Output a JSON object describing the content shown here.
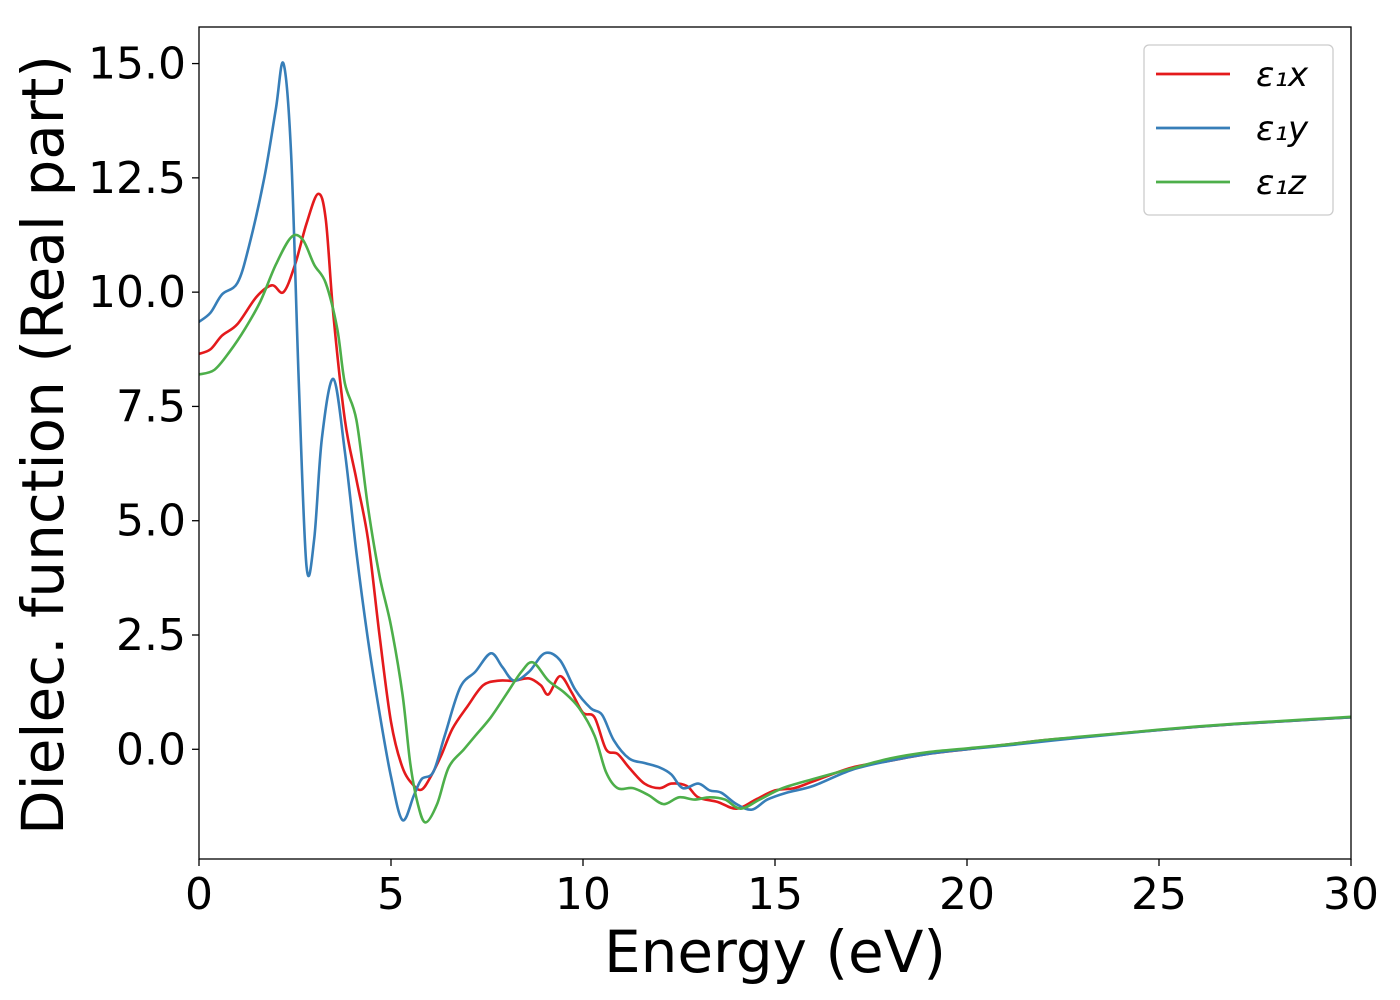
{
  "chart_data": {
    "type": "line",
    "title": "",
    "xlabel": "Energy (eV)",
    "ylabel": "Dielec. function (Real part)",
    "xlim": [
      0,
      30
    ],
    "ylim": [
      -2.4,
      15.8
    ],
    "xticks": [
      0,
      5,
      10,
      15,
      20,
      25,
      30
    ],
    "xtick_labels": [
      "0",
      "5",
      "10",
      "15",
      "20",
      "25",
      "30"
    ],
    "yticks": [
      0.0,
      2.5,
      5.0,
      7.5,
      10.0,
      12.5,
      15.0
    ],
    "ytick_labels": [
      "0.0",
      "2.5",
      "5.0",
      "7.5",
      "10.0",
      "12.5",
      "15.0"
    ],
    "grid": false,
    "legend_position": "top-right",
    "series": [
      {
        "name": "ε₁x",
        "color": "#e41a1c",
        "points": [
          [
            0,
            8.65
          ],
          [
            0.3,
            8.75
          ],
          [
            0.6,
            9.05
          ],
          [
            1.0,
            9.3
          ],
          [
            1.5,
            9.9
          ],
          [
            1.9,
            10.15
          ],
          [
            2.2,
            10.0
          ],
          [
            2.5,
            10.6
          ],
          [
            2.8,
            11.5
          ],
          [
            3.1,
            12.15
          ],
          [
            3.3,
            11.6
          ],
          [
            3.5,
            9.5
          ],
          [
            3.8,
            7.2
          ],
          [
            4.1,
            5.9
          ],
          [
            4.4,
            4.6
          ],
          [
            4.7,
            2.5
          ],
          [
            5.0,
            0.6
          ],
          [
            5.3,
            -0.4
          ],
          [
            5.6,
            -0.8
          ],
          [
            5.8,
            -0.88
          ],
          [
            6.0,
            -0.65
          ],
          [
            6.3,
            -0.15
          ],
          [
            6.6,
            0.45
          ],
          [
            7.0,
            0.95
          ],
          [
            7.4,
            1.4
          ],
          [
            7.8,
            1.5
          ],
          [
            8.2,
            1.5
          ],
          [
            8.6,
            1.55
          ],
          [
            8.9,
            1.4
          ],
          [
            9.1,
            1.2
          ],
          [
            9.4,
            1.6
          ],
          [
            9.7,
            1.25
          ],
          [
            10.0,
            0.8
          ],
          [
            10.3,
            0.7
          ],
          [
            10.6,
            0.0
          ],
          [
            10.9,
            -0.1
          ],
          [
            11.2,
            -0.4
          ],
          [
            11.6,
            -0.75
          ],
          [
            12.0,
            -0.85
          ],
          [
            12.3,
            -0.75
          ],
          [
            12.7,
            -0.8
          ],
          [
            13.0,
            -1.05
          ],
          [
            13.5,
            -1.15
          ],
          [
            14.0,
            -1.3
          ],
          [
            14.5,
            -1.1
          ],
          [
            15.0,
            -0.9
          ],
          [
            15.5,
            -0.85
          ],
          [
            16.0,
            -0.7
          ],
          [
            17,
            -0.4
          ],
          [
            18,
            -0.25
          ],
          [
            19,
            -0.1
          ],
          [
            20,
            0.0
          ],
          [
            21,
            0.1
          ],
          [
            22,
            0.2
          ],
          [
            23,
            0.27
          ],
          [
            24,
            0.35
          ],
          [
            25,
            0.42
          ],
          [
            26,
            0.49
          ],
          [
            27,
            0.55
          ],
          [
            28,
            0.6
          ],
          [
            29,
            0.65
          ],
          [
            30,
            0.7
          ]
        ]
      },
      {
        "name": "ε₁y",
        "color": "#377eb8",
        "points": [
          [
            0,
            9.35
          ],
          [
            0.3,
            9.55
          ],
          [
            0.6,
            9.95
          ],
          [
            1.0,
            10.2
          ],
          [
            1.3,
            11.0
          ],
          [
            1.7,
            12.5
          ],
          [
            2.0,
            14.0
          ],
          [
            2.2,
            15.0
          ],
          [
            2.4,
            13.0
          ],
          [
            2.6,
            8.0
          ],
          [
            2.8,
            4.0
          ],
          [
            3.0,
            4.6
          ],
          [
            3.2,
            6.8
          ],
          [
            3.5,
            8.1
          ],
          [
            3.8,
            6.5
          ],
          [
            4.1,
            4.3
          ],
          [
            4.4,
            2.4
          ],
          [
            4.7,
            0.8
          ],
          [
            5.0,
            -0.6
          ],
          [
            5.3,
            -1.55
          ],
          [
            5.6,
            -1.0
          ],
          [
            5.8,
            -0.65
          ],
          [
            6.1,
            -0.5
          ],
          [
            6.4,
            0.3
          ],
          [
            6.8,
            1.35
          ],
          [
            7.2,
            1.7
          ],
          [
            7.6,
            2.1
          ],
          [
            7.9,
            1.8
          ],
          [
            8.2,
            1.5
          ],
          [
            8.6,
            1.7
          ],
          [
            9.0,
            2.1
          ],
          [
            9.4,
            1.95
          ],
          [
            9.8,
            1.3
          ],
          [
            10.2,
            0.9
          ],
          [
            10.5,
            0.75
          ],
          [
            10.8,
            0.2
          ],
          [
            11.2,
            -0.2
          ],
          [
            11.6,
            -0.3
          ],
          [
            12.0,
            -0.4
          ],
          [
            12.3,
            -0.55
          ],
          [
            12.6,
            -0.85
          ],
          [
            13.0,
            -0.75
          ],
          [
            13.3,
            -0.9
          ],
          [
            13.6,
            -0.95
          ],
          [
            14.0,
            -1.2
          ],
          [
            14.4,
            -1.32
          ],
          [
            14.8,
            -1.1
          ],
          [
            15.3,
            -0.95
          ],
          [
            16,
            -0.8
          ],
          [
            17,
            -0.45
          ],
          [
            18,
            -0.25
          ],
          [
            19,
            -0.1
          ],
          [
            20,
            0.0
          ],
          [
            21,
            0.08
          ],
          [
            22,
            0.17
          ],
          [
            23,
            0.26
          ],
          [
            24,
            0.34
          ],
          [
            25,
            0.42
          ],
          [
            26,
            0.49
          ],
          [
            27,
            0.55
          ],
          [
            28,
            0.6
          ],
          [
            29,
            0.65
          ],
          [
            30,
            0.7
          ]
        ]
      },
      {
        "name": "ε₁z",
        "color": "#4daf4a",
        "points": [
          [
            0,
            8.2
          ],
          [
            0.4,
            8.3
          ],
          [
            0.8,
            8.7
          ],
          [
            1.2,
            9.2
          ],
          [
            1.6,
            9.8
          ],
          [
            2.0,
            10.6
          ],
          [
            2.4,
            11.2
          ],
          [
            2.7,
            11.15
          ],
          [
            3.0,
            10.6
          ],
          [
            3.3,
            10.2
          ],
          [
            3.6,
            9.2
          ],
          [
            3.8,
            8.0
          ],
          [
            4.1,
            7.2
          ],
          [
            4.4,
            5.3
          ],
          [
            4.7,
            3.8
          ],
          [
            5.0,
            2.7
          ],
          [
            5.3,
            1.2
          ],
          [
            5.5,
            -0.3
          ],
          [
            5.7,
            -1.2
          ],
          [
            5.9,
            -1.6
          ],
          [
            6.2,
            -1.2
          ],
          [
            6.5,
            -0.4
          ],
          [
            6.9,
            0.0
          ],
          [
            7.2,
            0.3
          ],
          [
            7.6,
            0.7
          ],
          [
            8.0,
            1.2
          ],
          [
            8.4,
            1.7
          ],
          [
            8.7,
            1.9
          ],
          [
            9.1,
            1.5
          ],
          [
            9.5,
            1.25
          ],
          [
            9.9,
            0.9
          ],
          [
            10.3,
            0.3
          ],
          [
            10.6,
            -0.5
          ],
          [
            10.9,
            -0.85
          ],
          [
            11.3,
            -0.85
          ],
          [
            11.7,
            -1.0
          ],
          [
            12.1,
            -1.2
          ],
          [
            12.5,
            -1.05
          ],
          [
            12.9,
            -1.1
          ],
          [
            13.3,
            -1.05
          ],
          [
            13.7,
            -1.1
          ],
          [
            14.1,
            -1.3
          ],
          [
            14.6,
            -1.1
          ],
          [
            15.2,
            -0.85
          ],
          [
            16,
            -0.65
          ],
          [
            17,
            -0.42
          ],
          [
            18,
            -0.2
          ],
          [
            19,
            -0.06
          ],
          [
            20,
            0.02
          ],
          [
            21,
            0.1
          ],
          [
            22,
            0.2
          ],
          [
            23,
            0.28
          ],
          [
            24,
            0.35
          ],
          [
            25,
            0.43
          ],
          [
            26,
            0.5
          ],
          [
            27,
            0.56
          ],
          [
            28,
            0.61
          ],
          [
            29,
            0.66
          ],
          [
            30,
            0.71
          ]
        ]
      }
    ]
  }
}
